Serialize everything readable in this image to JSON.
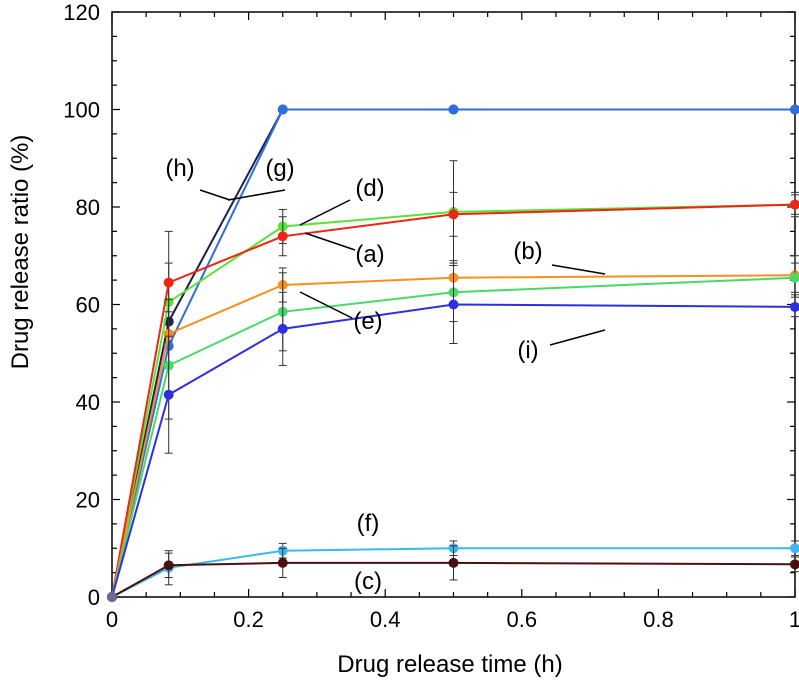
{
  "chart_data": {
    "type": "line",
    "xlabel": "Drug release time (h)",
    "ylabel": "Drug release ratio (%)",
    "xlim": [
      0,
      1
    ],
    "ylim": [
      0,
      120
    ],
    "xticks": [
      0,
      0.2,
      0.4,
      0.6,
      0.8,
      1
    ],
    "xtick_labels": [
      "0",
      "0.2",
      "0.4",
      "0.6",
      "0.8",
      "1"
    ],
    "yticks": [
      0,
      20,
      40,
      60,
      80,
      100,
      120
    ],
    "ytick_labels": [
      "0",
      "20",
      "40",
      "60",
      "80",
      "100",
      "120"
    ],
    "grid": false,
    "x": [
      0,
      0.083,
      0.25,
      0.5,
      1
    ],
    "series": [
      {
        "key": "h",
        "color": "#1b1f4a",
        "values": [
          0,
          56.5,
          100,
          100,
          100
        ],
        "err": [
          0,
          0,
          0,
          0,
          0
        ]
      },
      {
        "key": "g",
        "color": "#2e6fdc",
        "values": [
          0,
          51.5,
          100,
          100,
          100
        ],
        "err": [
          0,
          0,
          0,
          0,
          0
        ]
      },
      {
        "key": "d",
        "color": "#5be236",
        "values": [
          0,
          60.5,
          76,
          79,
          80.5
        ],
        "err": [
          0,
          8,
          3.5,
          10.5,
          2.5
        ]
      },
      {
        "key": "a",
        "color": "#ee2414",
        "values": [
          0,
          64.5,
          74,
          78.5,
          80.5
        ],
        "err": [
          0,
          10.5,
          4,
          4.5,
          2
        ]
      },
      {
        "key": "b",
        "color": "#f7901e",
        "values": [
          0,
          54,
          64,
          65.5,
          66
        ],
        "err": [
          0,
          7,
          3.5,
          3.5,
          4
        ]
      },
      {
        "key": "e",
        "color": "#47d96a",
        "values": [
          0,
          47.5,
          58.5,
          62.5,
          65.5
        ],
        "err": [
          0,
          11,
          8,
          6,
          3
        ]
      },
      {
        "key": "i",
        "color": "#2f2fe0",
        "values": [
          0,
          41.5,
          55,
          60,
          59.5
        ],
        "err": [
          0,
          12,
          7.5,
          8,
          2
        ]
      },
      {
        "key": "f",
        "color": "#3bb8ee",
        "values": [
          0,
          6,
          9.5,
          10,
          10
        ],
        "err": [
          0,
          3.5,
          1.5,
          1.5,
          1.5
        ]
      },
      {
        "key": "c",
        "color": "#4a1010",
        "values": [
          0,
          6.5,
          7,
          7,
          6.7
        ],
        "err": [
          0,
          2.5,
          3,
          3.5,
          1.5
        ]
      }
    ],
    "annotations": [
      {
        "text": "(h)",
        "series": "h"
      },
      {
        "text": "(g)",
        "series": "g"
      },
      {
        "text": "(d)",
        "series": "d"
      },
      {
        "text": "(a)",
        "series": "a"
      },
      {
        "text": "(b)",
        "series": "b"
      },
      {
        "text": "(e)",
        "series": "e"
      },
      {
        "text": "(i)",
        "series": "i"
      },
      {
        "text": "(f)",
        "series": "f"
      },
      {
        "text": "(c)",
        "series": "c"
      }
    ]
  }
}
